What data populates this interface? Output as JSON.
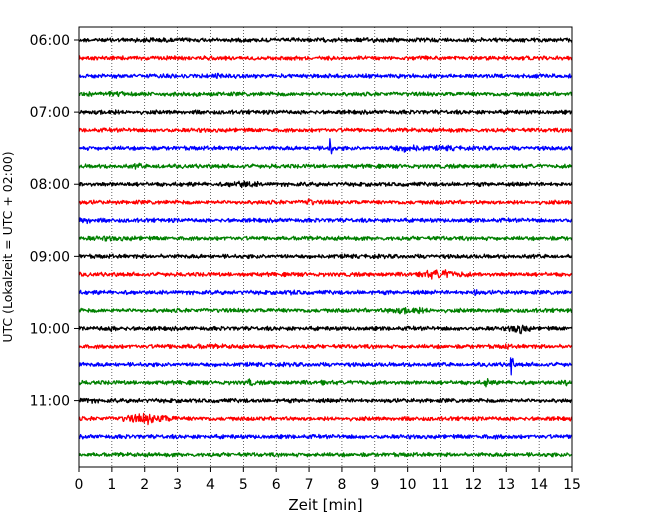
{
  "chart_data": {
    "type": "line",
    "subtype": "helicorder",
    "xlabel": "Zeit  [min]",
    "ylabel": "UTC (Lokalzeit = UTC + 02:00)",
    "xlim": [
      0,
      15
    ],
    "x_ticks": [
      "0",
      "1",
      "2",
      "3",
      "4",
      "5",
      "6",
      "7",
      "8",
      "9",
      "10",
      "11",
      "12",
      "13",
      "14",
      "15"
    ],
    "y_tick_labels": [
      "06:00",
      "07:00",
      "08:00",
      "09:00",
      "10:00",
      "11:00"
    ],
    "grid": {
      "x": true,
      "style": "dotted"
    },
    "traces_per_hour": 4,
    "trace_colors": [
      "#000000",
      "#ff0000",
      "#0000ff",
      "#008000"
    ],
    "traces": [
      {
        "start": "06:00",
        "events": [
          {
            "t": 2.1,
            "amp": 1.3,
            "dur": 0.8
          },
          {
            "t": 8.6,
            "amp": 1.2,
            "dur": 1.2
          }
        ]
      },
      {
        "start": "06:15",
        "events": []
      },
      {
        "start": "06:30",
        "events": [
          {
            "t": 4.2,
            "amp": 1.6,
            "dur": 0.2
          }
        ]
      },
      {
        "start": "06:45",
        "events": [
          {
            "t": 0.8,
            "amp": 1.4,
            "dur": 1.0
          }
        ]
      },
      {
        "start": "07:00",
        "events": [
          {
            "t": 0.8,
            "amp": 1.5,
            "dur": 0.6
          }
        ]
      },
      {
        "start": "07:15",
        "events": []
      },
      {
        "start": "07:30",
        "events": [
          {
            "t": 7.65,
            "amp": 5.5,
            "dur": 0.1
          },
          {
            "t": 10.0,
            "amp": 2.0,
            "dur": 0.8
          },
          {
            "t": 11.2,
            "amp": 1.4,
            "dur": 0.6
          }
        ]
      },
      {
        "start": "07:45",
        "events": [
          {
            "t": 1.8,
            "amp": 1.6,
            "dur": 0.2
          },
          {
            "t": 2.5,
            "amp": 1.8,
            "dur": 0.15
          }
        ]
      },
      {
        "start": "08:00",
        "events": [
          {
            "t": 5.0,
            "amp": 2.0,
            "dur": 0.6
          }
        ]
      },
      {
        "start": "08:15",
        "events": [
          {
            "t": 7.0,
            "amp": 2.5,
            "dur": 0.15
          }
        ]
      },
      {
        "start": "08:30",
        "events": [
          {
            "t": 0.2,
            "amp": 2.0,
            "dur": 0.3
          }
        ]
      },
      {
        "start": "08:45",
        "events": [
          {
            "t": 1.0,
            "amp": 1.3,
            "dur": 1.2
          }
        ]
      },
      {
        "start": "09:00",
        "events": []
      },
      {
        "start": "09:15",
        "events": [
          {
            "t": 11.0,
            "amp": 2.5,
            "dur": 1.0
          }
        ]
      },
      {
        "start": "09:30",
        "events": [
          {
            "t": 6.5,
            "amp": 1.3,
            "dur": 0.5
          },
          {
            "t": 12.05,
            "amp": 3.0,
            "dur": 0.1
          }
        ]
      },
      {
        "start": "09:45",
        "events": [
          {
            "t": 10.0,
            "amp": 2.3,
            "dur": 0.8
          }
        ]
      },
      {
        "start": "10:00",
        "events": [
          {
            "t": 1.0,
            "amp": 1.4,
            "dur": 0.6
          },
          {
            "t": 13.4,
            "amp": 2.8,
            "dur": 0.4
          }
        ]
      },
      {
        "start": "10:15",
        "events": [
          {
            "t": 3.6,
            "amp": 1.3,
            "dur": 1.5
          },
          {
            "t": 13.0,
            "amp": 2.2,
            "dur": 0.08
          }
        ]
      },
      {
        "start": "10:30",
        "events": [
          {
            "t": 13.15,
            "amp": 7.0,
            "dur": 0.08
          }
        ]
      },
      {
        "start": "10:45",
        "events": [
          {
            "t": 5.2,
            "amp": 3.0,
            "dur": 0.1
          },
          {
            "t": 7.4,
            "amp": 2.2,
            "dur": 0.08
          },
          {
            "t": 8.6,
            "amp": 2.0,
            "dur": 0.08
          },
          {
            "t": 12.45,
            "amp": 4.0,
            "dur": 0.12
          },
          {
            "t": 14.85,
            "amp": 2.2,
            "dur": 0.15
          }
        ]
      },
      {
        "start": "11:00",
        "events": [
          {
            "t": 0.2,
            "amp": 1.5,
            "dur": 0.4
          }
        ]
      },
      {
        "start": "11:15",
        "events": [
          {
            "t": 2.1,
            "amp": 2.8,
            "dur": 1.0
          }
        ]
      },
      {
        "start": "11:30",
        "events": [
          {
            "t": 12.5,
            "amp": 1.2,
            "dur": 1.0
          }
        ]
      },
      {
        "start": "11:45",
        "events": []
      }
    ]
  }
}
